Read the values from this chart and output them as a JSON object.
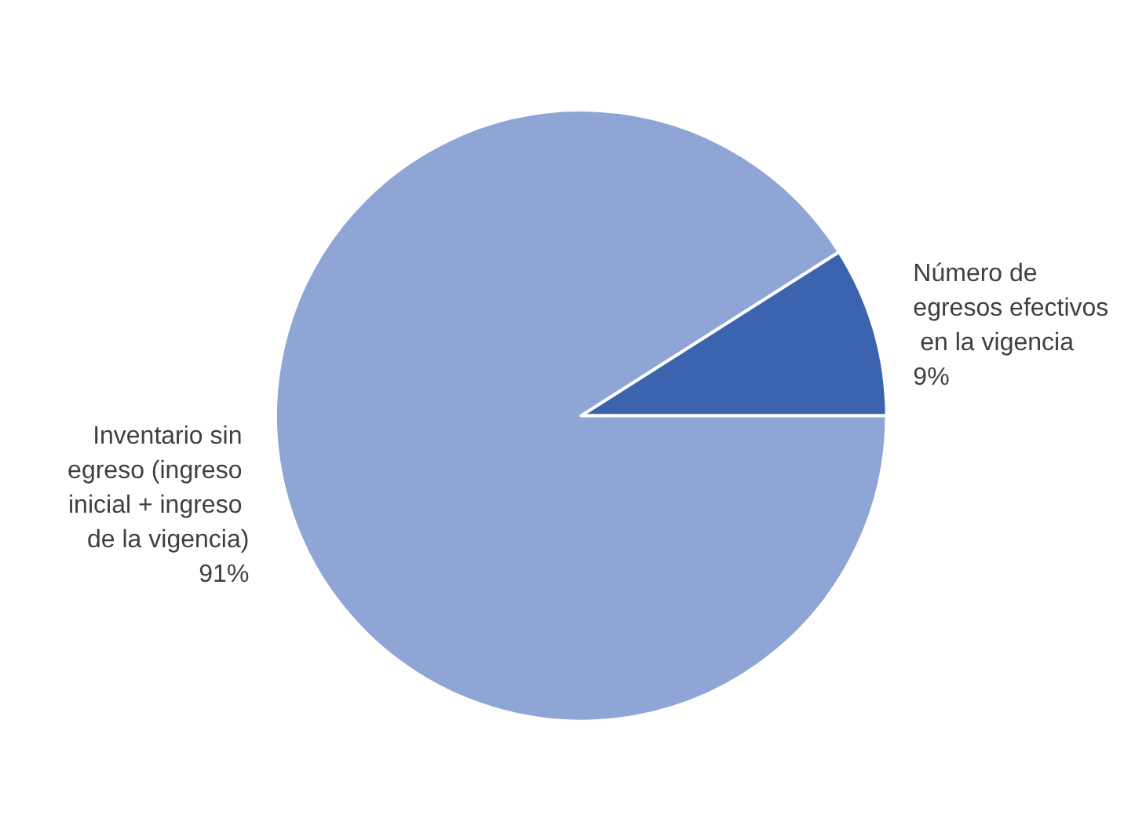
{
  "chart_data": {
    "type": "pie",
    "categories": [
      "Número de egresos efectivos en la vigencia",
      "Inventario sin egreso (ingreso inicial + ingreso de la vigencia)"
    ],
    "values": [
      9,
      91
    ],
    "value_labels": [
      "9%",
      "91%"
    ],
    "colors": [
      "#3c64ae",
      "#8fa5d6"
    ],
    "legend": false
  }
}
